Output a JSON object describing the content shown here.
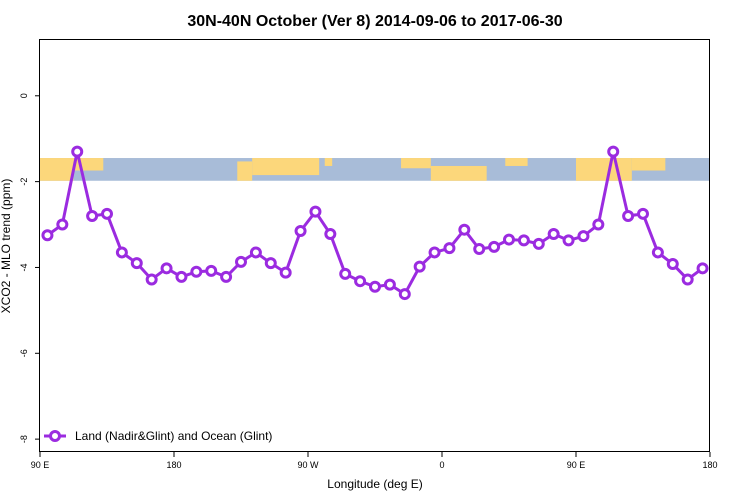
{
  "chart_data": {
    "type": "line",
    "title": "30N-40N October (Ver 8)   2014-09-06 to 2017-06-30",
    "xlabel": "Longitude (deg E)",
    "ylabel": "XCO2 - MLO trend (ppm)",
    "xlim": [
      90,
      450
    ],
    "ylim": [
      -8.3,
      1.3
    ],
    "x_ticks": [
      {
        "value": 90,
        "label": "90 E"
      },
      {
        "value": 162,
        "label": "180"
      },
      {
        "value": 234,
        "label": "90 W"
      },
      {
        "value": 306,
        "label": "0"
      },
      {
        "value": 378,
        "label": "90 E"
      },
      {
        "value": 450,
        "label": "180"
      }
    ],
    "y_ticks": [
      {
        "value": 0,
        "label": "0"
      },
      {
        "value": -2,
        "label": "-2"
      },
      {
        "value": -4,
        "label": "-4"
      },
      {
        "value": -6,
        "label": "-6"
      },
      {
        "value": -8,
        "label": "-8"
      }
    ],
    "grid": false,
    "legend_position": "bottom-left",
    "map_strip": {
      "y_top": -1.45,
      "y_bottom": -1.98,
      "ocean_color": "#a8bcd8",
      "land_color": "#fcd77b"
    },
    "series": [
      {
        "name": "Land (Nadir&Glint) and Ocean (Glint)",
        "color": "#9b2be0",
        "x": [
          94,
          102,
          110,
          118,
          126,
          134,
          142,
          150,
          158,
          166,
          174,
          182,
          190,
          198,
          206,
          214,
          222,
          230,
          238,
          246,
          254,
          262,
          270,
          278,
          286,
          294,
          302,
          310,
          318,
          326,
          334,
          342,
          350,
          358,
          366,
          374,
          382,
          390,
          398,
          406,
          414,
          422,
          430,
          438,
          446
        ],
        "y": [
          -3.25,
          -3.0,
          -1.3,
          -2.8,
          -2.75,
          -3.65,
          -3.9,
          -4.28,
          -4.02,
          -4.22,
          -4.1,
          -4.08,
          -4.22,
          -3.87,
          -3.65,
          -3.9,
          -4.12,
          -3.15,
          -2.7,
          -3.22,
          -4.15,
          -4.32,
          -4.45,
          -4.4,
          -4.62,
          -3.98,
          -3.65,
          -3.55,
          -3.12,
          -3.57,
          -3.52,
          -3.35,
          -3.37,
          -3.45,
          -3.22,
          -3.37,
          -3.27,
          -3.0,
          -1.3,
          -2.8,
          -2.75,
          -3.65,
          -3.92,
          -4.28,
          -4.02
        ]
      }
    ]
  }
}
